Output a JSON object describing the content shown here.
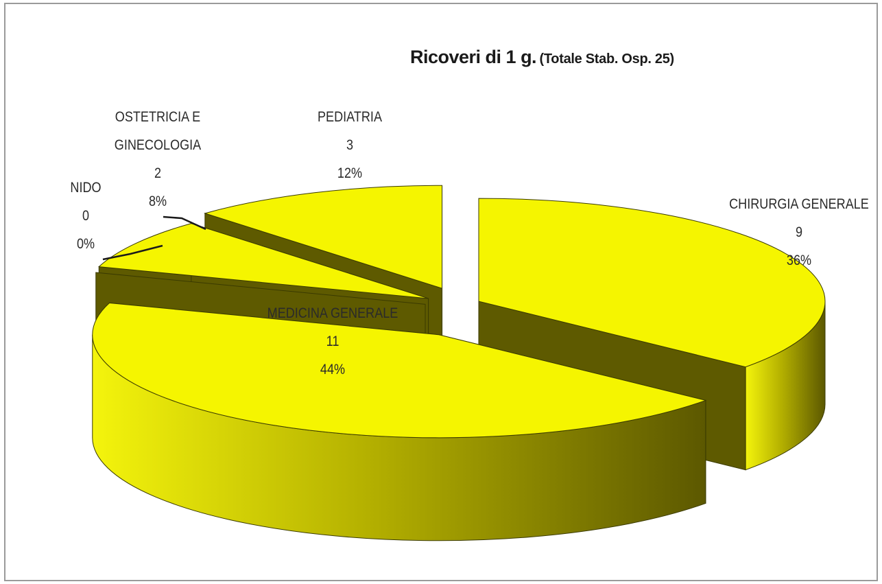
{
  "chart_data": {
    "type": "pie",
    "style": "3d-exploded",
    "title": "Ricoveri di 1 g.",
    "subtitle": "(Totale Stab. Osp. 25)",
    "colors": {
      "top": "#f5f500",
      "side_dark": "#5e5a00",
      "side_light": "#eeee10",
      "outline": "#3a3a00"
    },
    "slices": [
      {
        "label": "CHIRURGIA GENERALE",
        "value": 9,
        "percent": "36%"
      },
      {
        "label": "MEDICINA GENERALE",
        "value": 11,
        "percent": "44%"
      },
      {
        "label": "NIDO",
        "value": 0,
        "percent": "0%"
      },
      {
        "label": "OSTETRICIA E GINECOLOGIA",
        "value": 2,
        "percent": "8%"
      },
      {
        "label": "PEDIATRIA",
        "value": 3,
        "percent": "12%"
      }
    ]
  },
  "labels": {
    "chirurgia": {
      "name": "CHIRURGIA GENERALE",
      "value": "9",
      "percent": "36%"
    },
    "medicina": {
      "name": "MEDICINA GENERALE",
      "value": "11",
      "percent": "44%"
    },
    "nido": {
      "name": "NIDO",
      "value": "0",
      "percent": "0%"
    },
    "ostetricia": {
      "name_line1": "OSTETRICIA E",
      "name_line2": "GINECOLOGIA",
      "value": "2",
      "percent": "8%"
    },
    "pediatria": {
      "name": "PEDIATRIA",
      "value": "3",
      "percent": "12%"
    }
  }
}
